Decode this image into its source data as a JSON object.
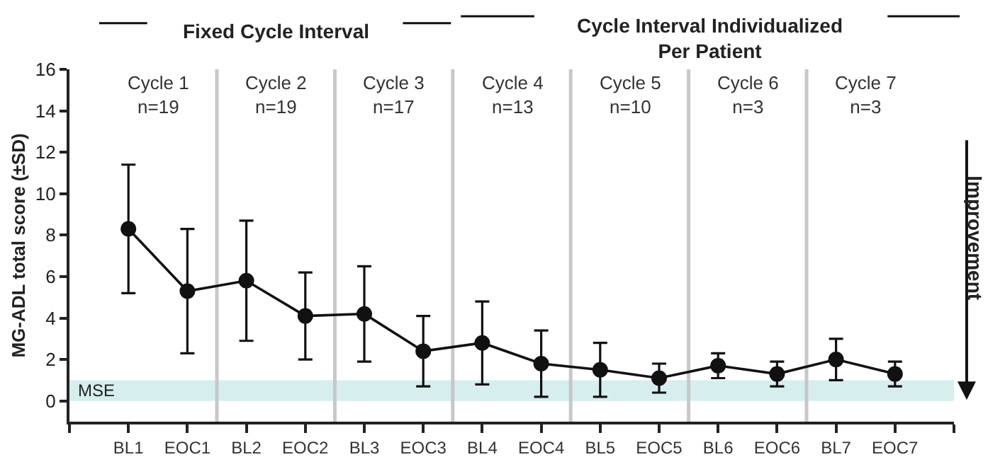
{
  "chart_data": {
    "type": "line",
    "ylabel": "MG-ADL total score (±SD)",
    "categories": [
      "BL1",
      "EOC1",
      "BL2",
      "EOC2",
      "BL3",
      "EOC3",
      "BL4",
      "EOC4",
      "BL5",
      "EOC5",
      "BL6",
      "EOC6",
      "BL7",
      "EOC7"
    ],
    "ylim": [
      -1,
      16
    ],
    "yticks": [
      0,
      2,
      4,
      6,
      8,
      10,
      12,
      14,
      16
    ],
    "series": [
      {
        "color": "#111111",
        "values": [
          8.3,
          5.3,
          5.8,
          4.1,
          4.2,
          2.4,
          2.8,
          1.8,
          1.5,
          1.1,
          1.7,
          1.3,
          2.0,
          1.3
        ],
        "errors": [
          3.1,
          3.0,
          2.9,
          2.1,
          2.3,
          1.7,
          2.0,
          1.6,
          1.3,
          0.7,
          0.6,
          0.6,
          1.0,
          0.6
        ]
      }
    ],
    "marker": "circle",
    "line_style": "solid",
    "grid": false,
    "bands": [
      {
        "axis": "y",
        "from": 0,
        "to": 1,
        "label": "MSE",
        "color": "#d6eeee"
      }
    ],
    "annotations": [
      "Fixed Cycle Interval",
      "Cycle Interval Individualized\nPer Patient",
      "Improvement",
      "Cycle 1\nn=19",
      "Cycle 2\nn=19",
      "Cycle 3\nn=17",
      "Cycle 4\nn=13",
      "Cycle 5\nn=10",
      "Cycle 6\nn=3",
      "Cycle 7\nn=3"
    ]
  }
}
